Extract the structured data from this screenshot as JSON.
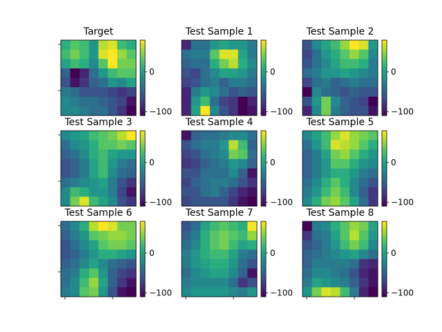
{
  "chart_data": {
    "type": "heatmap",
    "grid_size": 8,
    "colormap": "viridis",
    "color_range": [
      -110,
      80
    ],
    "colorbar_ticks": [
      0,
      -100
    ],
    "colorbar_tick_labels": [
      "0",
      "−100"
    ],
    "panels": [
      {
        "title": "Target",
        "values": [
          [
            10,
            30,
            20,
            -10,
            60,
            70,
            20,
            10
          ],
          [
            20,
            40,
            20,
            -10,
            70,
            80,
            50,
            30
          ],
          [
            0,
            20,
            10,
            -20,
            30,
            80,
            40,
            40
          ],
          [
            -50,
            -110,
            -90,
            -40,
            -10,
            20,
            30,
            30
          ],
          [
            -60,
            -100,
            -80,
            -50,
            -40,
            -10,
            -20,
            0
          ],
          [
            -30,
            -40,
            -60,
            -60,
            -60,
            -70,
            -80,
            -70
          ],
          [
            -20,
            -30,
            -40,
            -40,
            -50,
            -60,
            -70,
            -100
          ],
          [
            -20,
            -20,
            -30,
            -40,
            -40,
            -60,
            -80,
            -110
          ]
        ]
      },
      {
        "title": "Test Sample 1",
        "values": [
          [
            -90,
            -40,
            -40,
            -10,
            0,
            -10,
            -10,
            -30
          ],
          [
            -40,
            -30,
            -30,
            30,
            70,
            70,
            0,
            -30
          ],
          [
            -50,
            -40,
            -40,
            10,
            40,
            60,
            10,
            -20
          ],
          [
            -60,
            -70,
            -40,
            -20,
            0,
            0,
            -10,
            -30
          ],
          [
            -70,
            -60,
            -40,
            -30,
            -50,
            -30,
            -30,
            -40
          ],
          [
            -90,
            -30,
            -10,
            -20,
            -40,
            -60,
            -50,
            -60
          ],
          [
            -90,
            -10,
            20,
            -40,
            -70,
            -80,
            -110,
            -90
          ],
          [
            -90,
            0,
            80,
            -20,
            -60,
            -80,
            -110,
            -100
          ]
        ]
      },
      {
        "title": "Test Sample 2",
        "values": [
          [
            -60,
            -20,
            0,
            20,
            50,
            80,
            70,
            -10
          ],
          [
            -70,
            -40,
            -10,
            10,
            30,
            50,
            30,
            -20
          ],
          [
            -60,
            -40,
            -20,
            0,
            20,
            20,
            10,
            -30
          ],
          [
            -40,
            -30,
            -10,
            -10,
            0,
            -10,
            -20,
            -30
          ],
          [
            -70,
            -40,
            -30,
            -50,
            -40,
            -30,
            -40,
            -40
          ],
          [
            -110,
            -20,
            -40,
            -50,
            -60,
            -50,
            -60,
            -60
          ],
          [
            -60,
            -10,
            40,
            -20,
            -50,
            -60,
            -70,
            -110
          ],
          [
            -90,
            -20,
            40,
            -30,
            -50,
            -60,
            -60,
            -100
          ]
        ]
      },
      {
        "title": "Test Sample 3",
        "values": [
          [
            -20,
            -10,
            0,
            20,
            30,
            40,
            60,
            80
          ],
          [
            -40,
            -20,
            -10,
            10,
            30,
            30,
            40,
            30
          ],
          [
            -50,
            -40,
            -20,
            10,
            20,
            0,
            -10,
            -10
          ],
          [
            -60,
            -50,
            -30,
            0,
            20,
            -10,
            -30,
            -40
          ],
          [
            -60,
            -50,
            -30,
            0,
            20,
            -20,
            -40,
            -50
          ],
          [
            -40,
            -30,
            -20,
            -10,
            0,
            -30,
            -60,
            -80
          ],
          [
            -20,
            20,
            10,
            -10,
            -10,
            -30,
            -70,
            -100
          ],
          [
            -20,
            40,
            70,
            20,
            0,
            -20,
            -60,
            -80
          ]
        ]
      },
      {
        "title": "Test Sample 4",
        "values": [
          [
            -100,
            -50,
            -40,
            -40,
            -30,
            -20,
            -20,
            -40
          ],
          [
            -60,
            -40,
            -30,
            -30,
            -10,
            60,
            20,
            -50
          ],
          [
            -70,
            -60,
            -40,
            -30,
            -20,
            40,
            30,
            -40
          ],
          [
            -80,
            -70,
            -50,
            -40,
            -30,
            -10,
            -20,
            -50
          ],
          [
            -60,
            -60,
            -40,
            -40,
            -40,
            -20,
            -50,
            -100
          ],
          [
            -70,
            -50,
            -40,
            -30,
            -30,
            -40,
            -60,
            -80
          ],
          [
            -60,
            -60,
            -40,
            -30,
            -50,
            -70,
            -90,
            -100
          ],
          [
            -70,
            -60,
            -60,
            -60,
            -60,
            -80,
            -100,
            -110
          ]
        ]
      },
      {
        "title": "Test Sample 5",
        "values": [
          [
            -20,
            0,
            20,
            50,
            70,
            50,
            40,
            30
          ],
          [
            -40,
            -10,
            20,
            70,
            60,
            50,
            30,
            10
          ],
          [
            -50,
            -30,
            0,
            40,
            50,
            30,
            10,
            -10
          ],
          [
            -50,
            -30,
            -10,
            30,
            30,
            10,
            -10,
            -20
          ],
          [
            -50,
            -30,
            -10,
            10,
            10,
            -10,
            -30,
            -40
          ],
          [
            -40,
            -20,
            10,
            30,
            10,
            -20,
            -40,
            -60
          ],
          [
            -30,
            -10,
            20,
            40,
            20,
            -20,
            -50,
            -80
          ],
          [
            -20,
            10,
            40,
            50,
            30,
            0,
            -40,
            -80
          ]
        ]
      },
      {
        "title": "Test Sample 6",
        "values": [
          [
            -40,
            -20,
            10,
            60,
            80,
            70,
            40,
            40
          ],
          [
            -50,
            -30,
            -10,
            30,
            40,
            50,
            50,
            40
          ],
          [
            -60,
            -40,
            -20,
            0,
            30,
            40,
            40,
            30
          ],
          [
            -60,
            -50,
            -30,
            -10,
            10,
            10,
            0,
            -10
          ],
          [
            -50,
            -40,
            -20,
            0,
            -20,
            -40,
            -50,
            -60
          ],
          [
            -40,
            -30,
            10,
            30,
            -10,
            -50,
            -70,
            -80
          ],
          [
            -40,
            -20,
            20,
            50,
            0,
            -50,
            -80,
            -100
          ],
          [
            -30,
            -20,
            30,
            40,
            -10,
            -60,
            -100,
            -110
          ]
        ]
      },
      {
        "title": "Test Sample 7",
        "values": [
          [
            -60,
            -40,
            0,
            20,
            30,
            20,
            10,
            80
          ],
          [
            -50,
            -30,
            10,
            30,
            40,
            30,
            20,
            50
          ],
          [
            -40,
            -20,
            10,
            30,
            40,
            20,
            0,
            10
          ],
          [
            -30,
            -10,
            10,
            20,
            20,
            0,
            -30,
            -40
          ],
          [
            -30,
            -10,
            0,
            10,
            10,
            -10,
            -40,
            -60
          ],
          [
            -40,
            -20,
            -10,
            0,
            0,
            -20,
            -50,
            -100
          ],
          [
            -30,
            -20,
            -20,
            -20,
            -20,
            -40,
            -80,
            -60
          ],
          [
            -20,
            -10,
            -10,
            -10,
            -10,
            -20,
            -30,
            -10
          ]
        ]
      },
      {
        "title": "Test Sample 8",
        "values": [
          [
            -110,
            -30,
            -20,
            10,
            30,
            50,
            40,
            0
          ],
          [
            -80,
            -40,
            -30,
            0,
            30,
            60,
            30,
            -10
          ],
          [
            -60,
            -50,
            -30,
            -10,
            20,
            40,
            20,
            -20
          ],
          [
            -50,
            -40,
            -30,
            -20,
            -10,
            0,
            -20,
            -40
          ],
          [
            -50,
            -30,
            -30,
            -30,
            -30,
            -40,
            -80,
            -90
          ],
          [
            -40,
            -20,
            -20,
            -30,
            -40,
            -60,
            -90,
            -100
          ],
          [
            -30,
            0,
            -10,
            -20,
            -30,
            -50,
            -80,
            -100
          ],
          [
            -10,
            40,
            70,
            60,
            20,
            -30,
            -90,
            -110
          ]
        ]
      }
    ]
  }
}
